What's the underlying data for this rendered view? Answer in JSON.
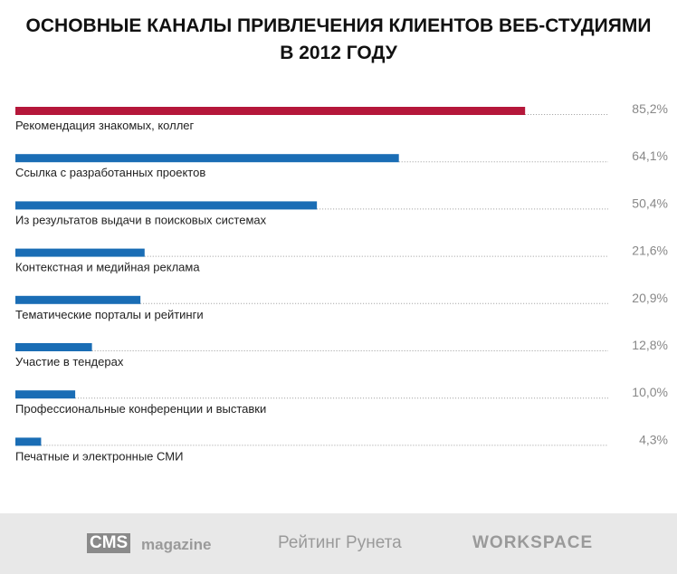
{
  "chart_data": {
    "type": "bar",
    "title": "ОСНОВНЫЕ КАНАЛЫ ПРИВЛЕЧЕНИЯ КЛИЕНТОВ ВЕБ-СТУДИЯМИ В 2012 ГОДУ",
    "categories": [
      "Рекомендация знакомых, коллег",
      "Ссылка с разработанных проектов",
      "Из результатов выдачи в поисковых системах",
      "Контекстная и медийная реклама",
      "Тематические порталы и рейтинги",
      "Участие в тендерах",
      "Профессиональные конференции и выставки",
      "Печатные и электронные СМИ"
    ],
    "values": [
      85.2,
      64.1,
      50.4,
      21.6,
      20.9,
      12.8,
      10.0,
      4.3
    ],
    "value_labels": [
      "85,2%",
      "64,1%",
      "50,4%",
      "21,6%",
      "20,9%",
      "12,8%",
      "10,0%",
      "4,3%"
    ],
    "colors": [
      "#b5173a",
      "#1a6db5",
      "#1a6db5",
      "#1a6db5",
      "#1a6db5",
      "#1a6db5",
      "#1a6db5",
      "#1a6db5"
    ]
  },
  "footer": {
    "logos": [
      "CMS",
      "magazine",
      "Рейтинг Рунета",
      "WORKSPACE"
    ]
  }
}
